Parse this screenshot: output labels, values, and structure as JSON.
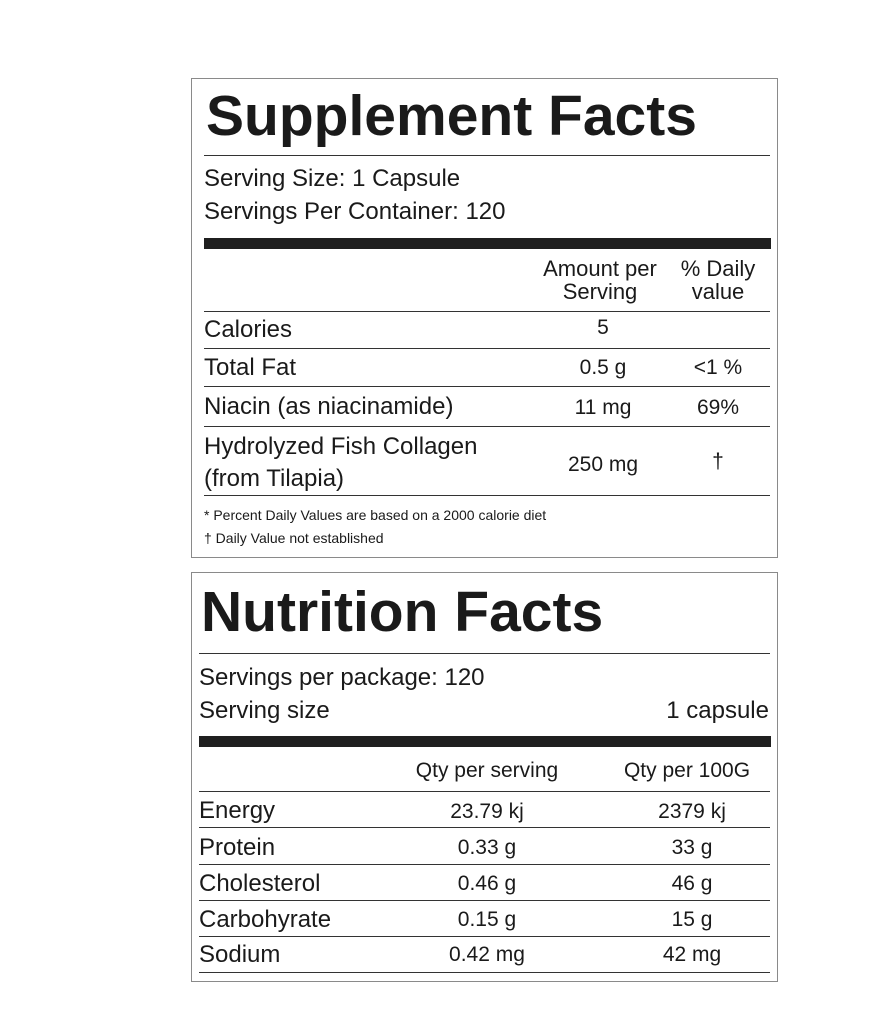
{
  "supplement": {
    "title": "Supplement Facts",
    "serving_size": "Serving Size: 1 Capsule",
    "servings_per_container": "Servings Per Container: 120",
    "headers": {
      "amount_line1": "Amount per",
      "amount_line2": "Serving",
      "daily_line1": "% Daily",
      "daily_line2": "value"
    },
    "rows": [
      {
        "name": "Calories",
        "amount": "5",
        "daily": ""
      },
      {
        "name": "Total Fat",
        "amount": "0.5 g",
        "daily": "<1 %"
      },
      {
        "name": "Niacin (as niacinamide)",
        "amount": "11 mg",
        "daily": "69%"
      },
      {
        "name_line1": "Hydrolyzed Fish Collagen",
        "name_line2": "(from Tilapia)",
        "amount": "250 mg",
        "daily": "†"
      }
    ],
    "footnote1": "* Percent Daily Values are based on a 2000 calorie diet",
    "footnote2": "† Daily Value not established"
  },
  "nutrition": {
    "title": "Nutrition Facts",
    "servings_per_package": "Servings per package: 120",
    "serving_size_label": "Serving size",
    "serving_size_value": "1 capsule",
    "headers": {
      "qty_serving": "Qty per serving",
      "qty_100g": "Qty per 100G"
    },
    "rows": [
      {
        "name": "Energy",
        "serving": "23.79 kj",
        "per100": "2379 kj"
      },
      {
        "name": "Protein",
        "serving": "0.33 g",
        "per100": "33 g"
      },
      {
        "name": "Cholesterol",
        "serving": "0.46 g",
        "per100": "46 g"
      },
      {
        "name": "Carbohyrate",
        "serving": "0.15 g",
        "per100": "15 g"
      },
      {
        "name": "Sodium",
        "serving": "0.42 mg",
        "per100": "42 mg"
      }
    ]
  }
}
